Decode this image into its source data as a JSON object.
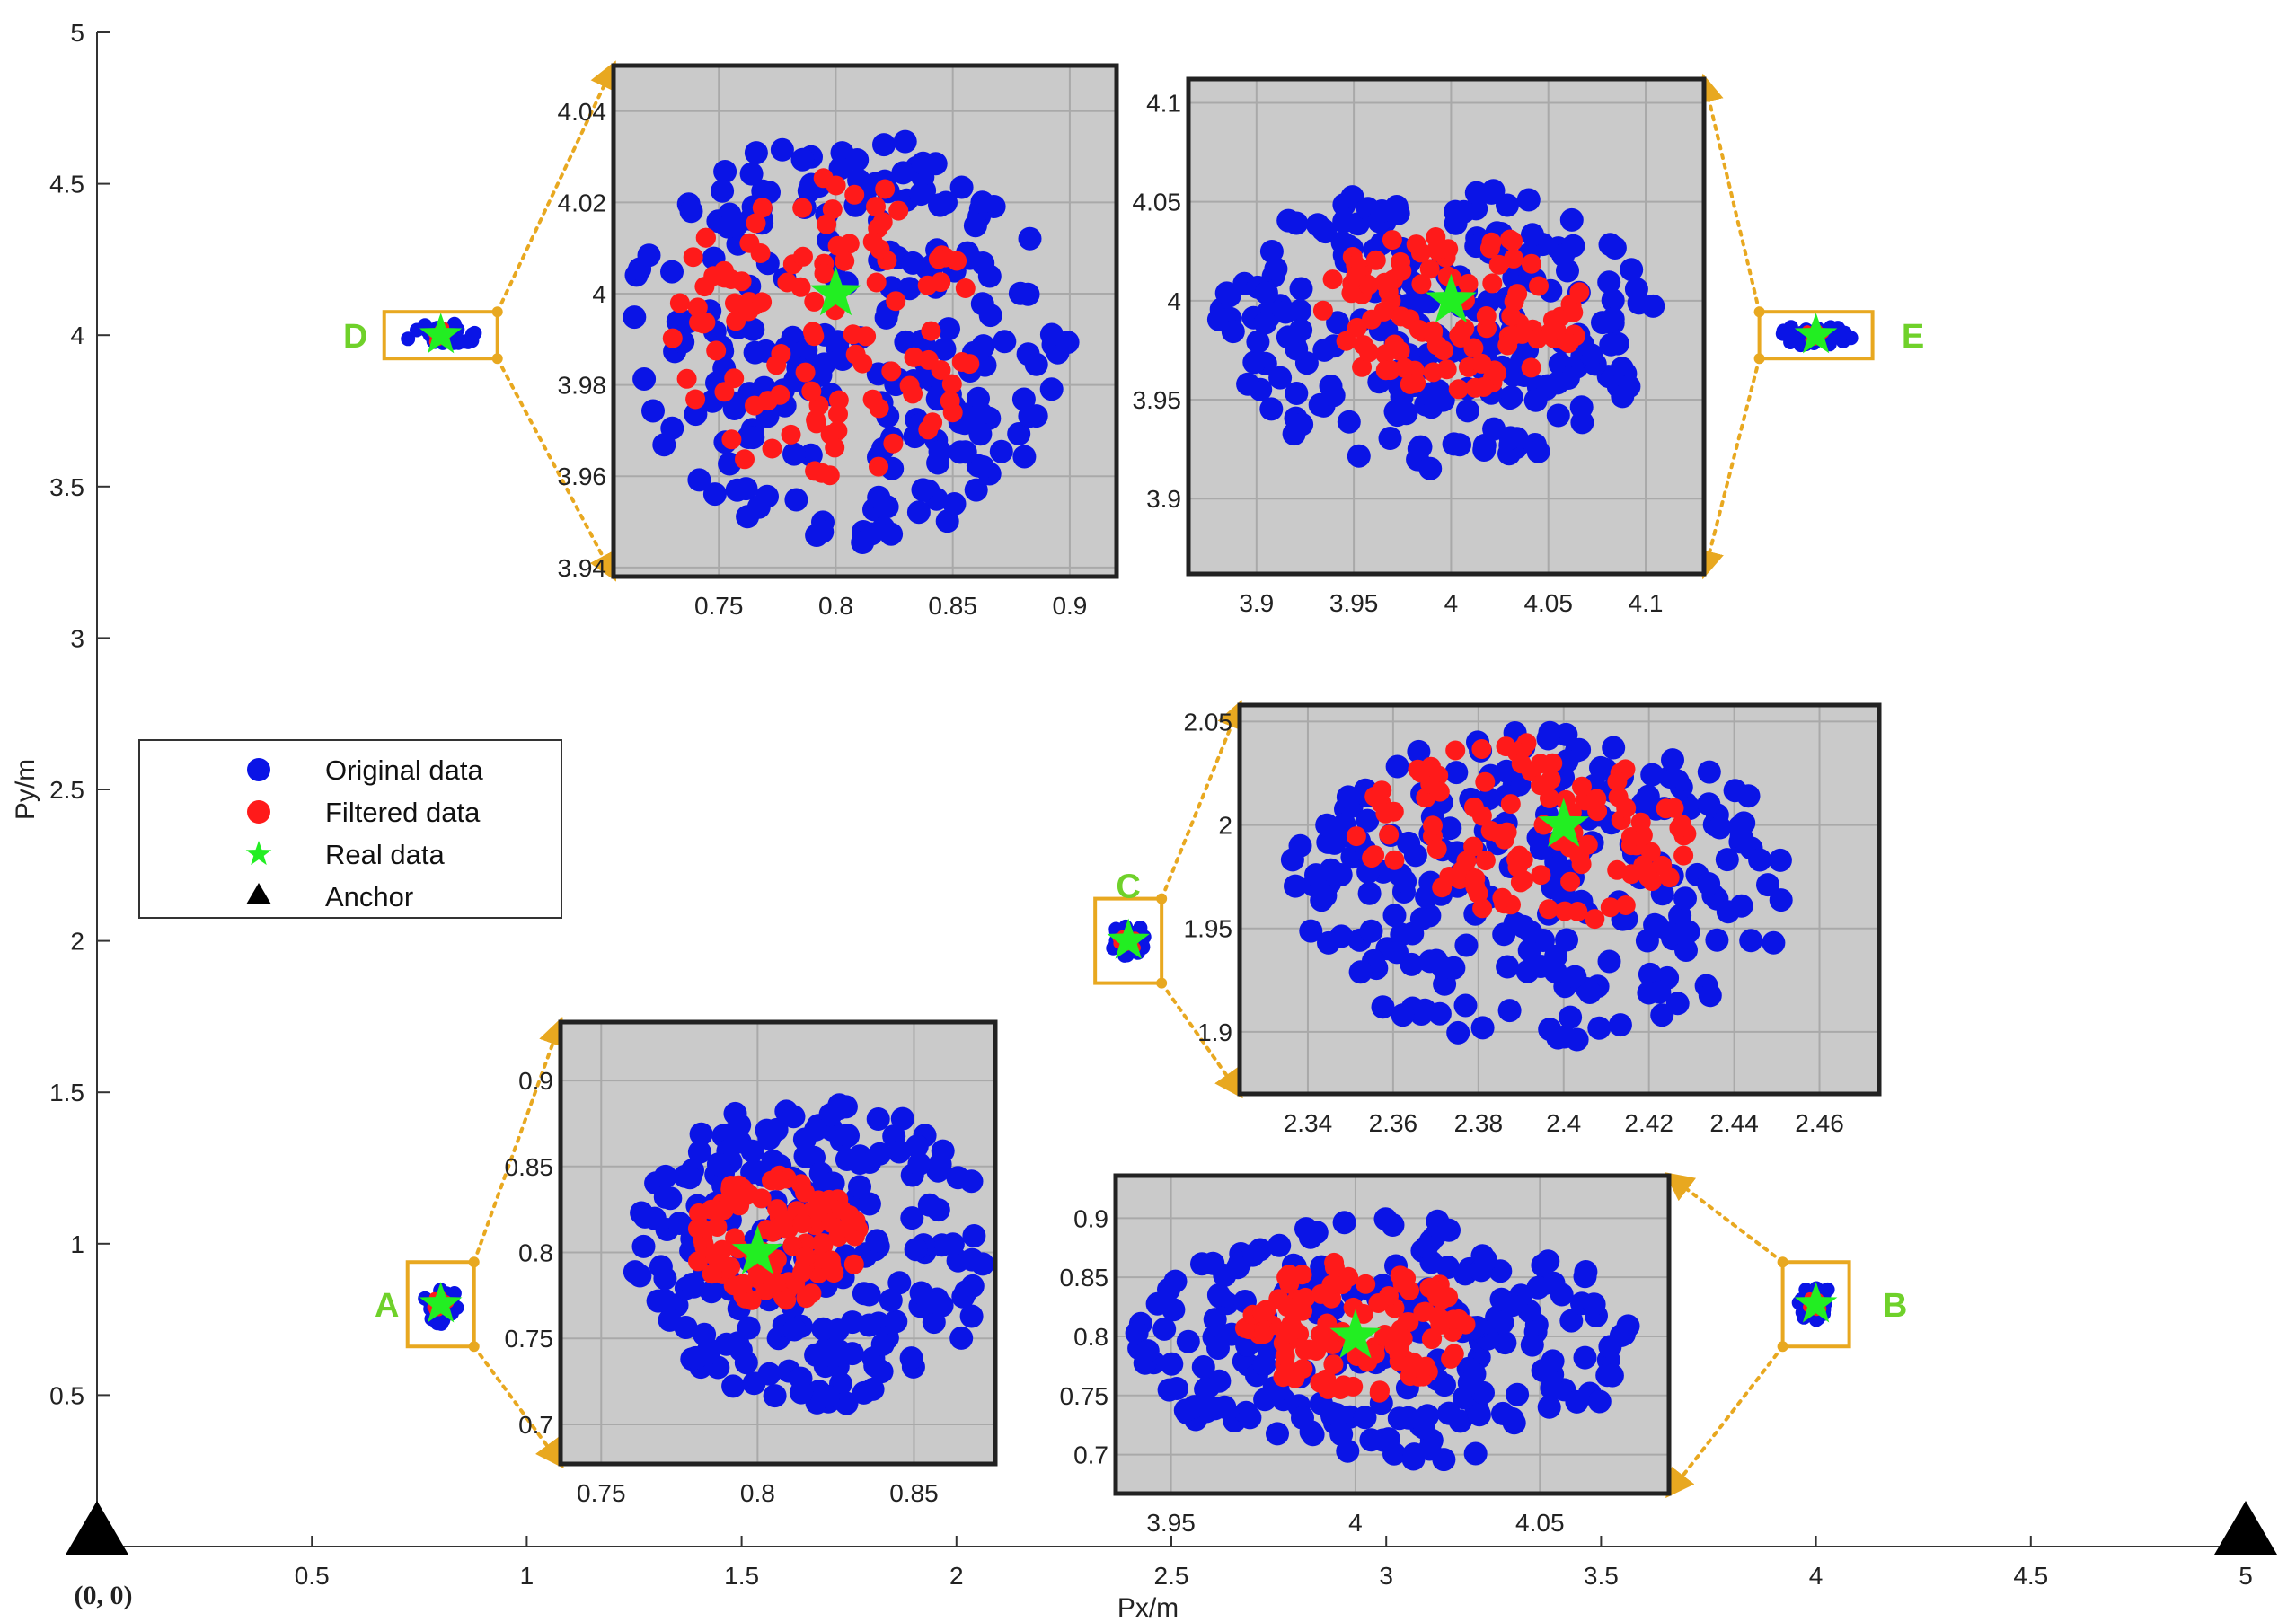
{
  "chart_data": {
    "type": "scatter",
    "xlabel": "Px/m",
    "ylabel": "Py/m",
    "xlim": [
      0,
      5
    ],
    "ylim": [
      0,
      5
    ],
    "xticks": [
      "0.5",
      "1",
      "1.5",
      "2",
      "2.5",
      "3",
      "3.5",
      "4",
      "4.5",
      "5"
    ],
    "yticks": [
      "0.5",
      "1",
      "1.5",
      "2",
      "2.5",
      "3",
      "3.5",
      "4",
      "4.5",
      "5"
    ],
    "origin_label": "(0, 0)",
    "legend": {
      "position": "middle-left",
      "entries": [
        "Original data",
        "Filtered data",
        "Real data",
        "Anchor"
      ]
    },
    "anchors": [
      {
        "x": 0,
        "y": 0
      },
      {
        "x": 5,
        "y": 0
      }
    ],
    "points": [
      {
        "label": "A",
        "x": 0.8,
        "y": 0.8
      },
      {
        "label": "B",
        "x": 4.0,
        "y": 0.8
      },
      {
        "label": "C",
        "x": 2.4,
        "y": 2.0
      },
      {
        "label": "D",
        "x": 0.8,
        "y": 4.0
      },
      {
        "label": "E",
        "x": 4.0,
        "y": 4.0
      }
    ],
    "insets": [
      {
        "label": "D",
        "real": [
          0.8,
          4.0
        ],
        "xlim": [
          0.705,
          0.92
        ],
        "ylim": [
          3.938,
          4.05
        ],
        "xticks": [
          "0.75",
          "0.8",
          "0.85",
          "0.9"
        ],
        "yticks": [
          "3.94",
          "3.96",
          "3.98",
          "4",
          "4.02",
          "4.04"
        ],
        "x_range": [
          0.71,
          0.9
        ],
        "y_range": [
          3.945,
          4.035
        ],
        "filtered_x_range": [
          0.73,
          0.86
        ],
        "filtered_y_range": [
          3.958,
          4.026
        ]
      },
      {
        "label": "E",
        "real": [
          4.0,
          4.0
        ],
        "xlim": [
          3.865,
          4.13
        ],
        "ylim": [
          3.862,
          4.112
        ],
        "xticks": [
          "3.9",
          "3.95",
          "4",
          "4.05",
          "4.1"
        ],
        "yticks": [
          "3.9",
          "3.95",
          "4",
          "4.05",
          "4.1"
        ],
        "x_range": [
          3.88,
          4.105
        ],
        "y_range": [
          3.915,
          4.06
        ],
        "filtered_x_range": [
          3.93,
          4.07
        ],
        "filtered_y_range": [
          3.955,
          4.035
        ]
      },
      {
        "label": "C",
        "real": [
          2.4,
          2.0
        ],
        "xlim": [
          2.324,
          2.474
        ],
        "ylim": [
          1.87,
          2.058
        ],
        "xticks": [
          "2.34",
          "2.36",
          "2.38",
          "2.4",
          "2.42",
          "2.44",
          "2.46"
        ],
        "yticks": [
          "1.9",
          "1.95",
          "2",
          "2.05"
        ],
        "x_range": [
          2.335,
          2.455
        ],
        "y_range": [
          1.895,
          2.045
        ],
        "filtered_x_range": [
          2.35,
          2.43
        ],
        "filtered_y_range": [
          1.95,
          2.04
        ]
      },
      {
        "label": "A",
        "real": [
          0.8,
          0.8
        ],
        "xlim": [
          0.737,
          0.876
        ],
        "ylim": [
          0.677,
          0.934
        ],
        "xticks": [
          "0.75",
          "0.8",
          "0.85"
        ],
        "yticks": [
          "0.7",
          "0.75",
          "0.8",
          "0.85",
          "0.9"
        ],
        "x_range": [
          0.76,
          0.875
        ],
        "y_range": [
          0.71,
          0.89
        ],
        "filtered_x_range": [
          0.778,
          0.833
        ],
        "filtered_y_range": [
          0.77,
          0.845
        ]
      },
      {
        "label": "B",
        "real": [
          4.0,
          0.8
        ],
        "xlim": [
          3.935,
          4.085
        ],
        "ylim": [
          0.667,
          0.936
        ],
        "xticks": [
          "3.95",
          "4",
          "4.05"
        ],
        "yticks": [
          "0.7",
          "0.75",
          "0.8",
          "0.85",
          "0.9"
        ],
        "x_range": [
          3.94,
          4.075
        ],
        "y_range": [
          0.69,
          0.9
        ],
        "filtered_x_range": [
          3.97,
          4.03
        ],
        "filtered_y_range": [
          0.75,
          0.865
        ]
      }
    ]
  }
}
